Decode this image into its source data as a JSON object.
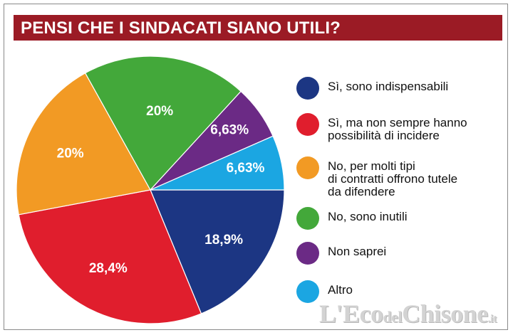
{
  "title": "PENSI CHE I SINDACATI SIANO UTILI?",
  "chart_data": {
    "type": "pie",
    "title": "PENSI CHE I SINDACATI SIANO UTILI?",
    "slices": [
      {
        "name": "Sì, sono indispensabili",
        "value": 18.9,
        "label": "18,9%",
        "color": "#1c3683"
      },
      {
        "name": "Sì, ma non sempre hanno\npossibilità di incidere",
        "value": 28.4,
        "label": "28,4%",
        "color": "#e01e2d"
      },
      {
        "name": "No, per molti tipi\ndi contratti offrono tutele\nda difendere",
        "value": 20,
        "label": "20%",
        "color": "#f29a24"
      },
      {
        "name": "No, sono inutili",
        "value": 20,
        "label": "20%",
        "color": "#43a83a"
      },
      {
        "name": "Non saprei",
        "value": 6.63,
        "label": "6,63%",
        "color": "#6b2a85"
      },
      {
        "name": "Altro",
        "value": 6.63,
        "label": "6,63%",
        "color": "#1ba6e2"
      }
    ],
    "legend_position": "right"
  },
  "watermark": {
    "main": "L'Eco",
    "mid": "del",
    "brand": "Chisone",
    "suffix": ".it"
  }
}
